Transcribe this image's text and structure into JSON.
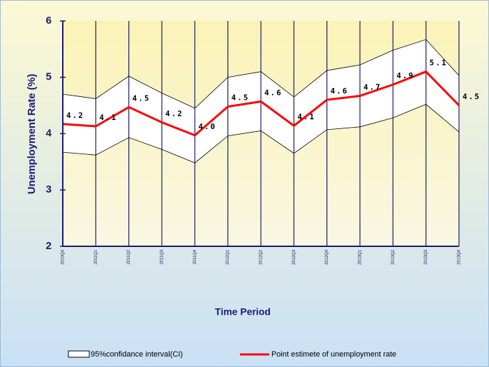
{
  "chart_data": {
    "type": "line-band",
    "x_label": "Time Period",
    "y_label": "Unemployment Rate (%)",
    "categories": [
      "2010Q4",
      "2011Q1",
      "2011Q2",
      "2011Q3",
      "2011Q4",
      "2012Q1",
      "2012Q2",
      "2012Q3",
      "2012Q4",
      "2013Q1",
      "2013Q2",
      "2013Q3",
      "2013Q4"
    ],
    "series": [
      {
        "name": "95%confidance interval(CI)",
        "color": "#ffffff",
        "upper": [
          4.7,
          4.62,
          5.02,
          4.72,
          4.45,
          5.0,
          5.1,
          4.65,
          5.12,
          5.22,
          5.48,
          5.67,
          5.03
        ],
        "lower": [
          3.67,
          3.62,
          3.93,
          3.72,
          3.48,
          3.96,
          4.05,
          3.65,
          4.07,
          4.12,
          4.28,
          4.52,
          4.03
        ]
      },
      {
        "name": "Point estimete of unemployment rate",
        "color": "#ff0000",
        "values": [
          4.17,
          4.13,
          4.47,
          4.2,
          3.97,
          4.48,
          4.57,
          4.14,
          4.6,
          4.67,
          4.87,
          5.1,
          4.5
        ],
        "value_labels": [
          "4.2",
          "4.1",
          "4.5",
          "4.2",
          "4.0",
          "4.5",
          "4.6",
          "4.1",
          "4.6",
          "4.7",
          "4.9",
          "5.1",
          "4.5"
        ]
      }
    ],
    "ylim": [
      2,
      6
    ],
    "yticks": [
      2,
      3,
      4,
      5,
      6
    ],
    "grid": "x"
  }
}
